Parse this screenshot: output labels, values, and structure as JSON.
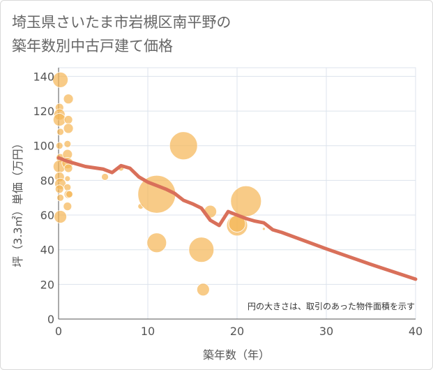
{
  "title_line1": "埼玉県さいたま市岩槻区南平野の",
  "title_line2": "築年数別中古戸建て価格",
  "note": "円の大きさは、取引のあった物件面積を示す",
  "chart_data": {
    "type": "scatter",
    "title": "埼玉県さいたま市岩槻区南平野の築年数別中古戸建て価格",
    "xlabel": "築年数（年）",
    "ylabel": "坪（3.3㎡）単価（万円）",
    "xlim": [
      0,
      40
    ],
    "ylim": [
      0,
      145
    ],
    "xticks": [
      0,
      10,
      20,
      30,
      40
    ],
    "yticks": [
      0,
      20,
      40,
      60,
      80,
      100,
      120,
      140
    ],
    "colors": {
      "bubble": "#f5b759",
      "line": "#d9705a",
      "grid": "#dce3ec"
    },
    "bubbles": [
      {
        "x": 0.2,
        "y": 138,
        "r": 11
      },
      {
        "x": 0.1,
        "y": 122,
        "r": 6
      },
      {
        "x": 0.1,
        "y": 118,
        "r": 8
      },
      {
        "x": 0.1,
        "y": 115,
        "r": 9
      },
      {
        "x": 0.2,
        "y": 108,
        "r": 5
      },
      {
        "x": 0.1,
        "y": 100,
        "r": 5
      },
      {
        "x": 0.2,
        "y": 93,
        "r": 6
      },
      {
        "x": 0.1,
        "y": 88,
        "r": 9
      },
      {
        "x": 0.1,
        "y": 82,
        "r": 7
      },
      {
        "x": 0.2,
        "y": 78,
        "r": 8
      },
      {
        "x": 0.1,
        "y": 75,
        "r": 6
      },
      {
        "x": 0.2,
        "y": 70,
        "r": 5
      },
      {
        "x": 0.2,
        "y": 59,
        "r": 9
      },
      {
        "x": 1.1,
        "y": 127,
        "r": 7
      },
      {
        "x": 1.1,
        "y": 115,
        "r": 6
      },
      {
        "x": 1.1,
        "y": 110,
        "r": 7
      },
      {
        "x": 1.0,
        "y": 101,
        "r": 5
      },
      {
        "x": 1.0,
        "y": 95,
        "r": 7
      },
      {
        "x": 1.0,
        "y": 90,
        "r": 8
      },
      {
        "x": 1.1,
        "y": 87,
        "r": 6
      },
      {
        "x": 1.0,
        "y": 81,
        "r": 4
      },
      {
        "x": 1.0,
        "y": 76,
        "r": 5
      },
      {
        "x": 1.1,
        "y": 72,
        "r": 6
      },
      {
        "x": 1.2,
        "y": 72,
        "r": 5
      },
      {
        "x": 1.0,
        "y": 65,
        "r": 6
      },
      {
        "x": 5.2,
        "y": 82,
        "r": 5
      },
      {
        "x": 7.0,
        "y": 87,
        "r": 4
      },
      {
        "x": 9.2,
        "y": 65,
        "r": 4
      },
      {
        "x": 11.0,
        "y": 72,
        "r": 27
      },
      {
        "x": 11.0,
        "y": 44,
        "r": 14
      },
      {
        "x": 14.0,
        "y": 100,
        "r": 20
      },
      {
        "x": 16.0,
        "y": 40,
        "r": 18
      },
      {
        "x": 16.2,
        "y": 17,
        "r": 9
      },
      {
        "x": 17.0,
        "y": 62,
        "r": 9
      },
      {
        "x": 20.0,
        "y": 54,
        "r": 15
      },
      {
        "x": 20.0,
        "y": 55,
        "r": 12
      },
      {
        "x": 21.0,
        "y": 68,
        "r": 22
      },
      {
        "x": 23.0,
        "y": 52,
        "r": 2
      }
    ],
    "line": {
      "x": [
        0,
        1,
        3,
        5,
        6,
        7,
        8,
        9,
        10,
        11,
        12,
        13,
        14,
        15,
        16,
        17,
        18,
        19,
        20,
        21,
        22,
        23,
        24,
        25,
        30,
        35,
        40
      ],
      "y": [
        93,
        91,
        88,
        86.5,
        84.5,
        88.5,
        87,
        82,
        79,
        77,
        75,
        72.5,
        68.5,
        66.5,
        64,
        57,
        54,
        62,
        60,
        58,
        56.5,
        55.5,
        51.5,
        50,
        40.5,
        31.5,
        23
      ]
    }
  }
}
